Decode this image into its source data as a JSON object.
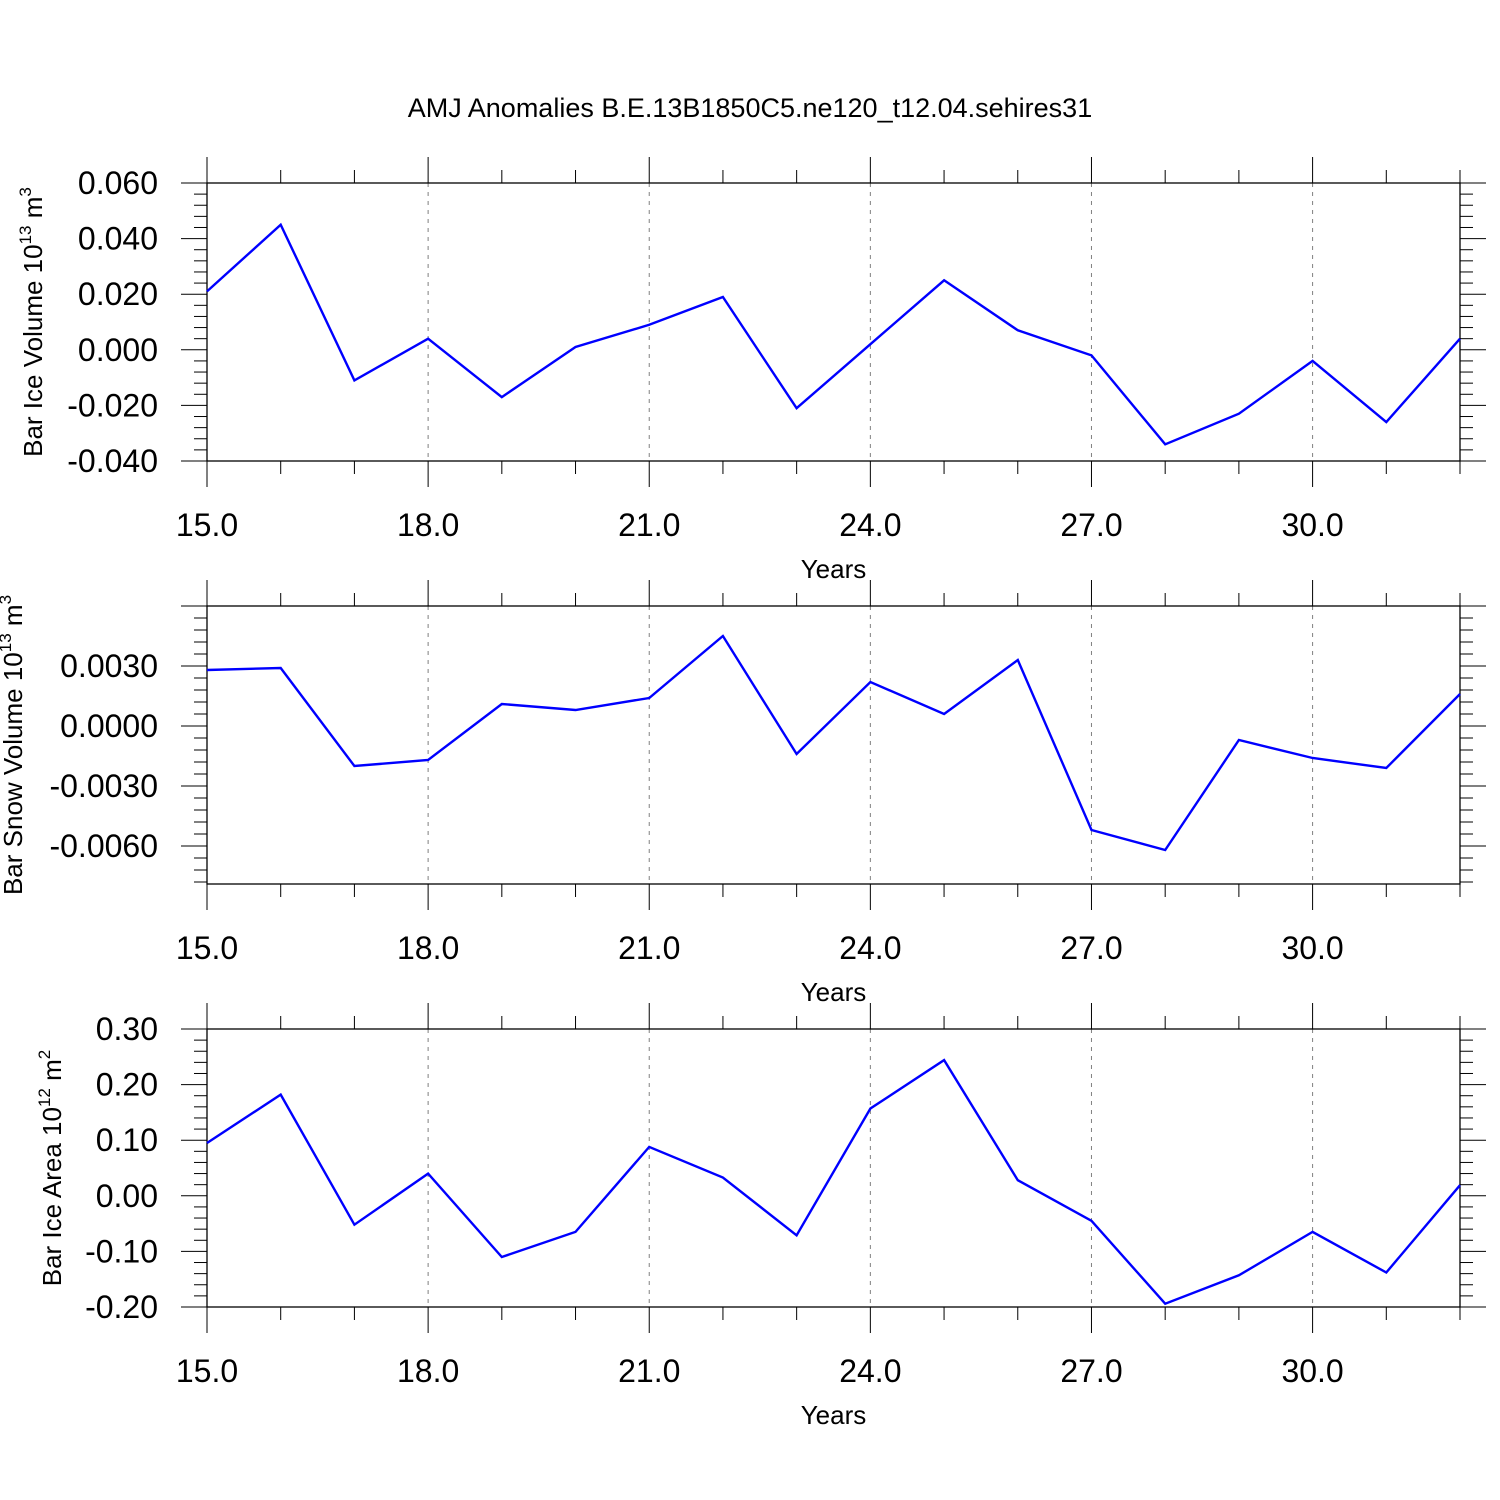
{
  "title": "AMJ Anomalies B.E.13B1850C5.ne120_t12.04.sehires31",
  "colors": {
    "series": "#0000ff",
    "axis": "#000000",
    "grid": "#808080"
  },
  "chart_data": [
    {
      "type": "line",
      "ylabel": "Bar Ice Volume 10",
      "ylabel_exp": "13",
      "ylabel_unit": " m",
      "ylabel_unit_exp": "3",
      "xlabel": "Years",
      "xlim": [
        15,
        32
      ],
      "ylim": [
        -0.04,
        0.06
      ],
      "xticks": [
        15,
        18,
        21,
        24,
        27,
        30
      ],
      "xtick_labels": [
        "15.0",
        "18.0",
        "21.0",
        "24.0",
        "27.0",
        "30.0"
      ],
      "yticks": [
        0.06,
        0.04,
        0.02,
        0.0,
        -0.02,
        -0.04
      ],
      "ytick_labels": [
        "0.060",
        "0.040",
        "0.020",
        "0.000",
        "-0.020",
        "-0.040"
      ],
      "grid_x": true,
      "series": [
        {
          "x": [
            15,
            16,
            17,
            18,
            19,
            20,
            21,
            22,
            23,
            24,
            25,
            26,
            27,
            28,
            29,
            30,
            31,
            32
          ],
          "y": [
            0.021,
            0.045,
            -0.011,
            0.004,
            -0.017,
            0.001,
            0.009,
            0.019,
            -0.021,
            0.002,
            0.025,
            0.007,
            -0.002,
            -0.034,
            -0.023,
            -0.004,
            -0.026,
            0.004
          ]
        }
      ]
    },
    {
      "type": "line",
      "ylabel": "Bar Snow Volume 10",
      "ylabel_exp": "13",
      "ylabel_unit": " m",
      "ylabel_unit_exp": "3",
      "xlabel": "Years",
      "xlim": [
        15,
        32
      ],
      "ylim": [
        -0.0079,
        0.006
      ],
      "xticks": [
        15,
        18,
        21,
        24,
        27,
        30
      ],
      "xtick_labels": [
        "15.0",
        "18.0",
        "21.0",
        "24.0",
        "27.0",
        "30.0"
      ],
      "yticks": [
        0.003,
        0.0,
        -0.003,
        -0.006
      ],
      "ytick_labels": [
        "0.0030",
        "0.0000",
        "-0.0030",
        "-0.0060"
      ],
      "grid_x": true,
      "series": [
        {
          "x": [
            15,
            16,
            17,
            18,
            19,
            20,
            21,
            22,
            23,
            24,
            25,
            26,
            27,
            28,
            29,
            30,
            31,
            32
          ],
          "y": [
            0.0028,
            0.0029,
            -0.002,
            -0.0017,
            0.0011,
            0.0008,
            0.0014,
            0.0045,
            -0.0014,
            0.0022,
            0.0006,
            0.0033,
            -0.0052,
            -0.0062,
            -0.0007,
            -0.0016,
            -0.0021,
            0.0016
          ]
        }
      ]
    },
    {
      "type": "line",
      "ylabel": "Bar Ice Area 10",
      "ylabel_exp": "12",
      "ylabel_unit": " m",
      "ylabel_unit_exp": "2",
      "xlabel": "Years",
      "xlim": [
        15,
        32
      ],
      "ylim": [
        -0.2,
        0.3
      ],
      "xticks": [
        15,
        18,
        21,
        24,
        27,
        30
      ],
      "xtick_labels": [
        "15.0",
        "18.0",
        "21.0",
        "24.0",
        "27.0",
        "30.0"
      ],
      "yticks": [
        0.3,
        0.2,
        0.1,
        0.0,
        -0.1,
        -0.2
      ],
      "ytick_labels": [
        "0.30",
        "0.20",
        "0.10",
        "0.00",
        "-0.10",
        "-0.20"
      ],
      "grid_x": true,
      "series": [
        {
          "x": [
            15,
            16,
            17,
            18,
            19,
            20,
            21,
            22,
            23,
            24,
            25,
            26,
            27,
            28,
            29,
            30,
            31,
            32
          ],
          "y": [
            0.095,
            0.182,
            -0.052,
            0.04,
            -0.11,
            -0.065,
            0.088,
            0.033,
            -0.071,
            0.157,
            0.244,
            0.028,
            -0.045,
            -0.194,
            -0.143,
            -0.065,
            -0.138,
            0.019
          ]
        }
      ]
    }
  ]
}
